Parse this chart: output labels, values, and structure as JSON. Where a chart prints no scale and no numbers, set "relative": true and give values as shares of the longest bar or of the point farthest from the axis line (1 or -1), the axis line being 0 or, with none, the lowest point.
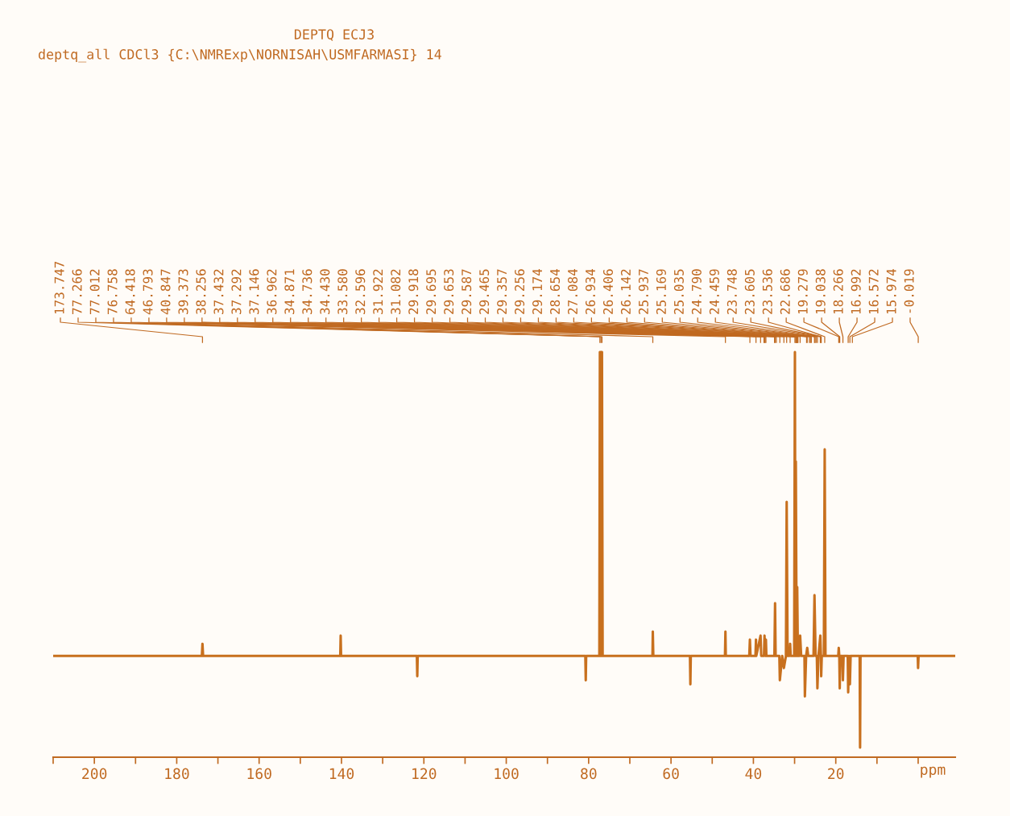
{
  "chart_data": {
    "type": "line",
    "relative": true,
    "title": "DEPTQ ECJ3",
    "subtitle": "deptq_all CDCl3 {C:\\NMRExp\\NORNISAH\\USMFARMASI} 14",
    "xlabel": "ppm",
    "xlim": [
      210,
      -9
    ],
    "xticks": [
      {
        "value": 210,
        "label": null
      },
      200,
      {
        "value": 190,
        "label": null
      },
      180,
      {
        "value": 170,
        "label": null
      },
      160,
      {
        "value": 150,
        "label": null
      },
      140,
      {
        "value": 130,
        "label": null
      },
      120,
      {
        "value": 110,
        "label": null
      },
      100,
      {
        "value": 90,
        "label": null
      },
      80,
      {
        "value": 70,
        "label": null
      },
      60,
      {
        "value": 50,
        "label": null
      },
      40,
      {
        "value": 30,
        "label": null
      },
      20,
      {
        "value": 10,
        "label": null
      },
      {
        "value": 0,
        "label": null
      }
    ],
    "grid": false,
    "legend": false,
    "marker": "none",
    "line_style": "solid",
    "series": [
      {
        "color": "#c8701e",
        "x": [
          210,
          173.9,
          173.75,
          173.6,
          140.3,
          140.2,
          140.1,
          121.7,
          121.6,
          121.5,
          80.8,
          80.7,
          80.6,
          77.4,
          77.27,
          77.14,
          77.01,
          76.88,
          76.76,
          76.6,
          64.5,
          64.42,
          64.3,
          55.4,
          55.3,
          55.2,
          46.9,
          46.79,
          46.7,
          41.0,
          40.85,
          40.7,
          39.5,
          39.37,
          39.3,
          38.26,
          38.1,
          37.43,
          37.3,
          37.15,
          37.0,
          36.96,
          36.85,
          34.9,
          34.74,
          34.6,
          33.7,
          33.58,
          33.0,
          32.6,
          32.1,
          31.92,
          31.7,
          31.2,
          31.08,
          30.95,
          30.1,
          29.92,
          29.8,
          29.7,
          29.5,
          29.36,
          29.2,
          28.8,
          28.65,
          28.4,
          27.6,
          27.5,
          27.2,
          26.93,
          26.7,
          25.4,
          25.17,
          24.9,
          24.6,
          24.46,
          24.2,
          23.75,
          23.6,
          23.54,
          23.4,
          22.9,
          22.69,
          22.5,
          19.4,
          19.28,
          19.15,
          19.04,
          18.9,
          18.4,
          18.27,
          18.1,
          17.1,
          16.99,
          16.8,
          16.57,
          16.4,
          14.2,
          14.1,
          14.0,
          0.1,
          0.02,
          -0.1,
          -9
        ],
        "values": [
          0.25,
          0.25,
          0.28,
          0.25,
          0.25,
          0.3,
          0.25,
          0.25,
          0.2,
          0.25,
          0.25,
          0.19,
          0.25,
          0.25,
          1.0,
          0.25,
          1.0,
          0.25,
          1.0,
          0.25,
          0.25,
          0.31,
          0.25,
          0.25,
          0.18,
          0.25,
          0.25,
          0.31,
          0.25,
          0.25,
          0.29,
          0.25,
          0.25,
          0.29,
          0.25,
          0.3,
          0.25,
          0.25,
          0.3,
          0.25,
          0.25,
          0.29,
          0.25,
          0.25,
          0.38,
          0.25,
          0.25,
          0.19,
          0.25,
          0.22,
          0.25,
          0.63,
          0.25,
          0.25,
          0.28,
          0.25,
          0.25,
          1.0,
          0.25,
          0.73,
          0.25,
          0.42,
          0.25,
          0.25,
          0.3,
          0.25,
          0.25,
          0.15,
          0.25,
          0.27,
          0.25,
          0.25,
          0.4,
          0.25,
          0.25,
          0.17,
          0.25,
          0.3,
          0.25,
          0.2,
          0.25,
          0.25,
          0.76,
          0.25,
          0.25,
          0.27,
          0.25,
          0.17,
          0.25,
          0.25,
          0.19,
          0.25,
          0.25,
          0.16,
          0.25,
          0.18,
          0.25,
          0.25,
          0.024,
          0.25,
          0.25,
          0.22,
          0.25,
          0.25
        ]
      }
    ],
    "annotations": [
      {
        "text": "173.747",
        "x": 173.747
      },
      {
        "text": "77.266",
        "x": 77.266
      },
      {
        "text": "77.012",
        "x": 77.012
      },
      {
        "text": "76.758",
        "x": 76.758
      },
      {
        "text": "64.418",
        "x": 64.418
      },
      {
        "text": "46.793",
        "x": 46.793
      },
      {
        "text": "40.847",
        "x": 40.847
      },
      {
        "text": "39.373",
        "x": 39.373
      },
      {
        "text": "38.256",
        "x": 38.256
      },
      {
        "text": "37.432",
        "x": 37.432
      },
      {
        "text": "37.292",
        "x": 37.292
      },
      {
        "text": "37.146",
        "x": 37.146
      },
      {
        "text": "36.962",
        "x": 36.962
      },
      {
        "text": "34.871",
        "x": 34.871
      },
      {
        "text": "34.736",
        "x": 34.736
      },
      {
        "text": "34.430",
        "x": 34.43
      },
      {
        "text": "33.580",
        "x": 33.58
      },
      {
        "text": "32.596",
        "x": 32.596
      },
      {
        "text": "31.922",
        "x": 31.922
      },
      {
        "text": "31.082",
        "x": 31.082
      },
      {
        "text": "29.918",
        "x": 29.918
      },
      {
        "text": "29.695",
        "x": 29.695
      },
      {
        "text": "29.653",
        "x": 29.653
      },
      {
        "text": "29.587",
        "x": 29.587
      },
      {
        "text": "29.465",
        "x": 29.465
      },
      {
        "text": "29.357",
        "x": 29.357
      },
      {
        "text": "29.256",
        "x": 29.256
      },
      {
        "text": "29.174",
        "x": 29.174
      },
      {
        "text": "28.654",
        "x": 28.654
      },
      {
        "text": "27.084",
        "x": 27.084
      },
      {
        "text": "26.934",
        "x": 26.934
      },
      {
        "text": "26.406",
        "x": 26.406
      },
      {
        "text": "26.142",
        "x": 26.142
      },
      {
        "text": "25.937",
        "x": 25.937
      },
      {
        "text": "25.169",
        "x": 25.169
      },
      {
        "text": "25.035",
        "x": 25.035
      },
      {
        "text": "24.790",
        "x": 24.79
      },
      {
        "text": "24.459",
        "x": 24.459
      },
      {
        "text": "23.748",
        "x": 23.748
      },
      {
        "text": "23.605",
        "x": 23.605
      },
      {
        "text": "23.536",
        "x": 23.536
      },
      {
        "text": "22.686",
        "x": 22.686
      },
      {
        "text": "19.279",
        "x": 19.279
      },
      {
        "text": "19.038",
        "x": 19.038
      },
      {
        "text": "18.266",
        "x": 18.266
      },
      {
        "text": "16.992",
        "x": 16.992
      },
      {
        "text": "16.572",
        "x": 16.572
      },
      {
        "text": "15.974",
        "x": 15.974
      },
      {
        "text": "-0.019",
        "x": -0.019
      }
    ]
  }
}
